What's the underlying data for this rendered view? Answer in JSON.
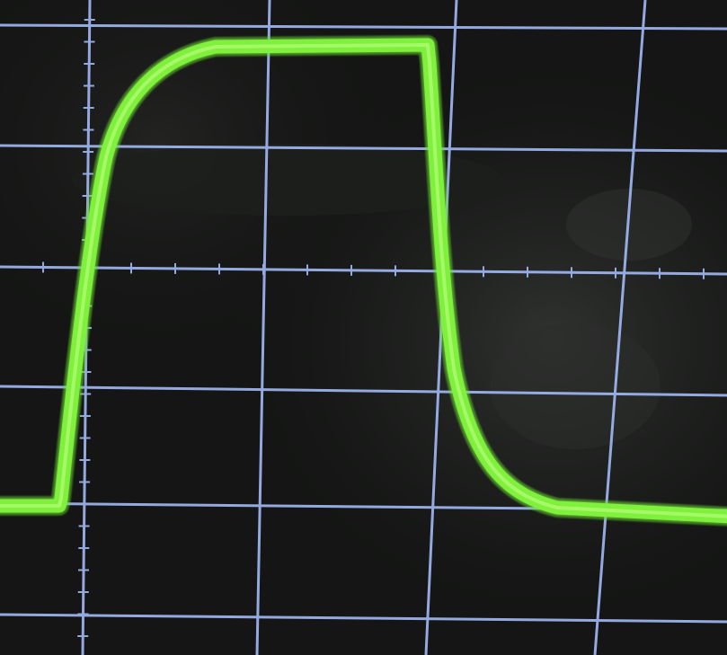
{
  "scene": {
    "subject": "oscilloscope-screen-photo",
    "graticule_color": "#9fb6f2",
    "trace_color": "#7ff03a",
    "background_color": "#141514"
  },
  "trace": {
    "shape": "square-pulse",
    "baseline_level": 0.0,
    "high_level": 1.0
  }
}
